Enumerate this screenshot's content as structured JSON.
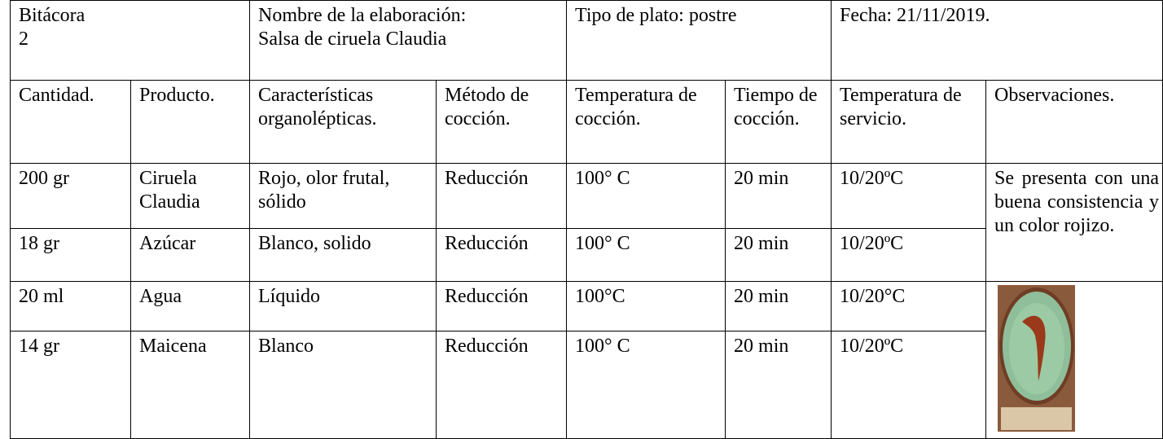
{
  "header": {
    "log": [
      "Bitácora",
      "2"
    ],
    "dish_name": [
      "Nombre de la elaboración:",
      "Salsa de ciruela Claudia"
    ],
    "dish_type": "Tipo de plato: postre",
    "date": "Fecha: 21/11/2019."
  },
  "table": {
    "columns": [
      "Cantidad.",
      "Producto.",
      "Características organolépticas.",
      "Método de cocción.",
      "Temperatura de cocción.",
      "Tiempo de cocción.",
      "Temperatura de servicio.",
      "Observaciones."
    ],
    "rows": [
      [
        "200 gr",
        "Ciruela Claudia",
        "Rojo, olor frutal, sólido",
        "Reducción",
        "100° C",
        "20 min",
        "10/20ºC"
      ],
      [
        "18 gr",
        "Azúcar",
        "Blanco, solido",
        "Reducción",
        "100° C",
        "20 min",
        "10/20ºC"
      ],
      [
        "20 ml",
        "Agua",
        "Líquido",
        "Reducción",
        "100°C",
        "20 min",
        "10/20°C"
      ],
      [
        "14 gr",
        "Maicena",
        "Blanco",
        "Reducción",
        "100° C",
        "20 min",
        "10/20ºC"
      ]
    ],
    "observations": "Se presenta con una buena consistencia y un color rojizo."
  }
}
